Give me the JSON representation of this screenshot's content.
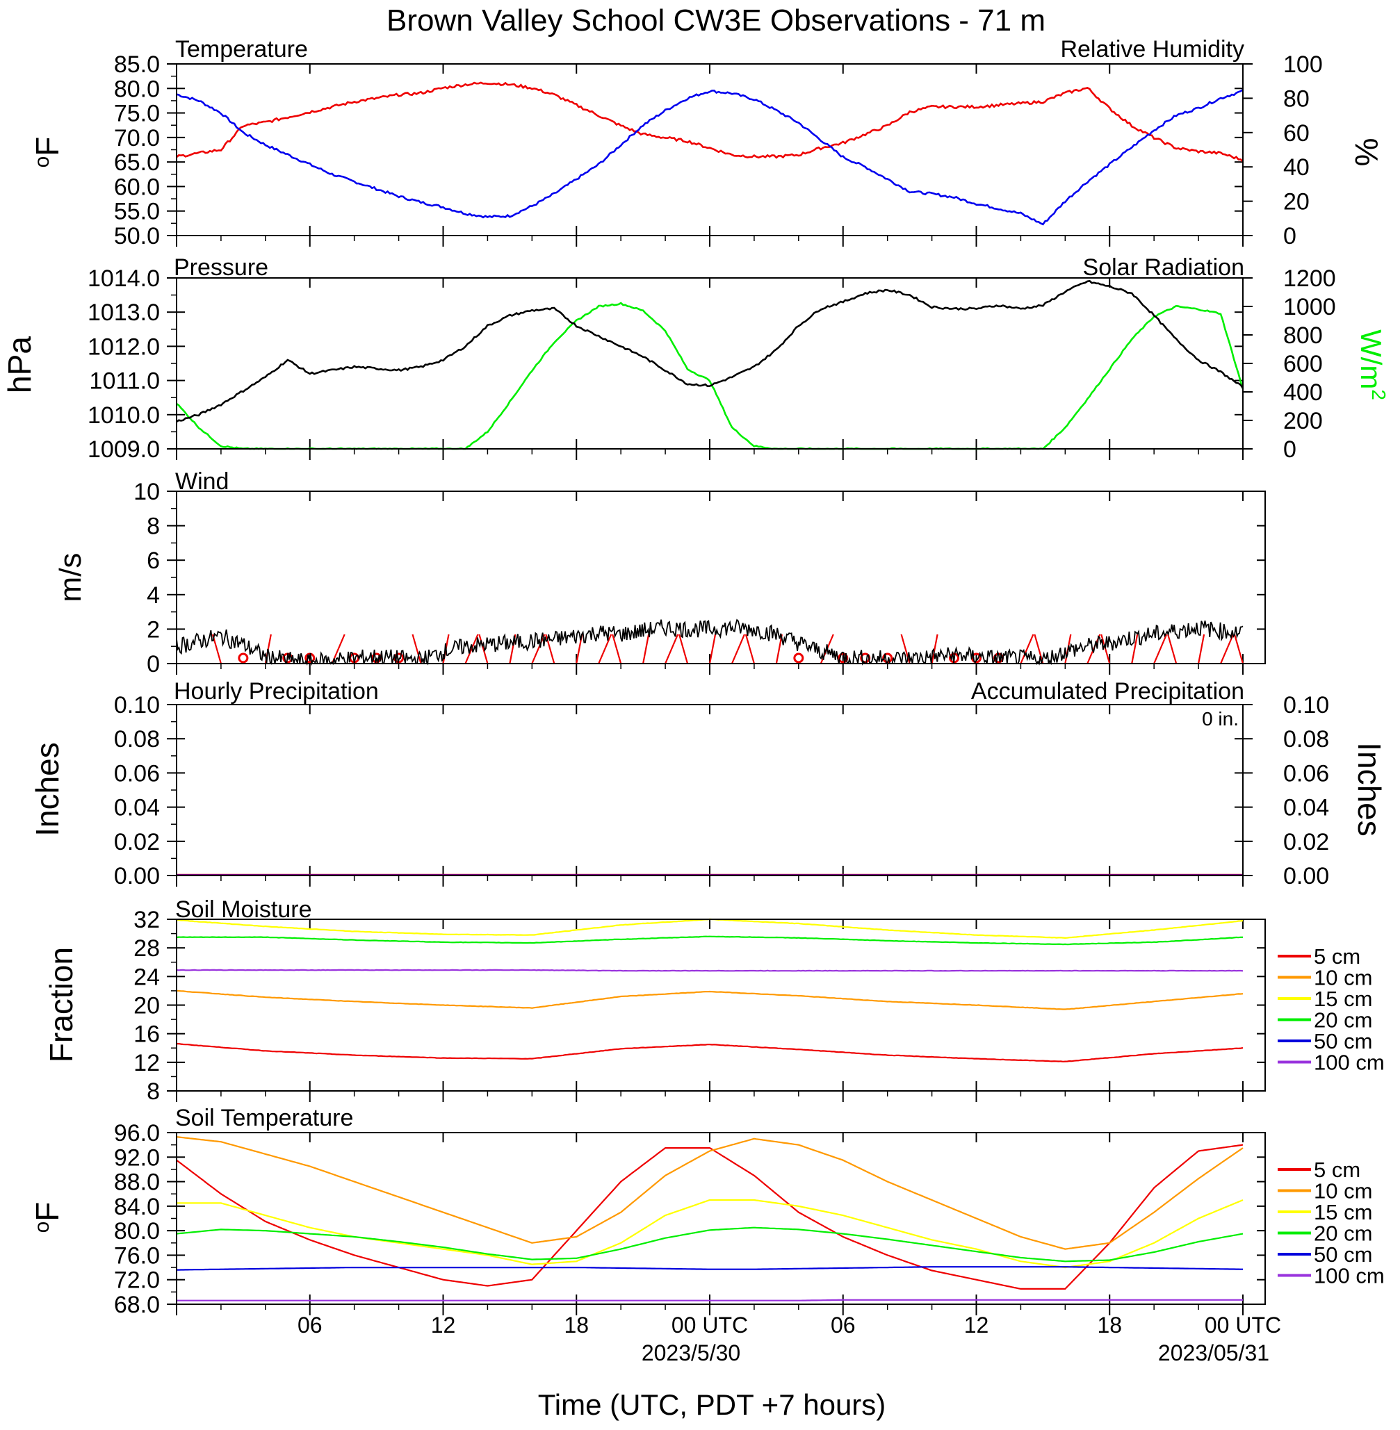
{
  "title": "Brown Valley School CW3E Observations - 71 m",
  "xlabel": "Time (UTC, PDT +7 hours)",
  "x_ticks": [
    "06",
    "12",
    "18",
    "00 UTC",
    "06",
    "12",
    "18",
    "00 UTC"
  ],
  "date_labels": [
    "2023/5/30",
    "2023/05/31"
  ],
  "colors": {
    "temperature": "#0000ee",
    "rh": "#ee0000",
    "pressure": "#000000",
    "solar": "#00ee00",
    "wind": "#000000",
    "barbs": "#ee0000",
    "d5": "#ee0000",
    "d10": "#ff9900",
    "d15": "#ffff00",
    "d20": "#00ee00",
    "d50": "#0000dd",
    "d100": "#9933dd"
  },
  "chart_data": [
    {
      "type": "line",
      "panel": "temperature_rh",
      "left_title": "Temperature",
      "right_title": "Relative Humidity",
      "ylabel_left": "oF",
      "ylabel_right": "%",
      "ylim_left": [
        50,
        85
      ],
      "ylim_right": [
        0,
        100
      ],
      "yticks_left": [
        "50.0",
        "55.0",
        "60.0",
        "65.0",
        "70.0",
        "75.0",
        "80.0",
        "85.0"
      ],
      "yticks_right": [
        "0",
        "20",
        "40",
        "60",
        "80",
        "100"
      ],
      "x_hours": [
        0,
        1,
        2,
        3,
        4,
        5,
        6,
        7,
        8,
        9,
        10,
        11,
        12,
        13,
        14,
        15,
        16,
        17,
        18,
        19,
        20,
        21,
        22,
        23,
        24,
        25,
        26,
        27,
        28,
        29,
        30,
        31,
        32,
        33,
        34,
        35,
        36,
        37,
        38,
        39,
        40,
        41,
        42,
        43,
        44,
        45,
        46,
        47,
        48
      ],
      "series": [
        {
          "name": "Temperature",
          "axis": "left",
          "values": [
            78.8,
            77.5,
            75,
            71,
            68.5,
            66.5,
            64.5,
            62.5,
            61,
            59.5,
            58,
            56.8,
            55.8,
            54.5,
            53.8,
            54,
            56,
            58.5,
            61.5,
            64.5,
            68.5,
            72.5,
            75.5,
            78,
            79.5,
            79,
            77.8,
            75.5,
            73,
            69.5,
            66,
            64,
            61.5,
            59,
            58.5,
            57.8,
            56.5,
            55.5,
            54.5,
            52.3,
            57,
            61,
            64.5,
            68,
            71.5,
            74.5,
            76,
            78,
            79.5
          ]
        },
        {
          "name": "Relative Humidity",
          "axis": "right",
          "values": [
            46,
            48,
            50,
            64,
            66,
            69,
            72,
            75,
            78,
            80,
            82,
            83,
            86,
            88,
            89,
            88,
            86,
            82,
            76,
            70,
            64,
            59,
            57,
            55,
            51,
            47,
            46,
            46,
            47,
            51,
            54,
            59,
            64,
            72,
            75,
            75,
            75,
            76,
            77,
            78,
            83,
            86,
            74,
            64,
            57,
            51,
            49,
            48,
            44
          ]
        }
      ]
    },
    {
      "type": "line",
      "panel": "pressure_solar",
      "left_title": "Pressure",
      "right_title": "Solar Radiation",
      "ylabel_left": "hPa",
      "ylabel_right": "W/m2",
      "ylim_left": [
        1009,
        1014
      ],
      "ylim_right": [
        0,
        1200
      ],
      "yticks_left": [
        "1009.0",
        "1010.0",
        "1011.0",
        "1012.0",
        "1013.0",
        "1014.0"
      ],
      "yticks_right": [
        "0",
        "200",
        "400",
        "600",
        "800",
        "1000",
        "1200"
      ],
      "x_hours": [
        0,
        1,
        2,
        3,
        4,
        5,
        6,
        7,
        8,
        9,
        10,
        11,
        12,
        13,
        14,
        15,
        16,
        17,
        18,
        19,
        20,
        21,
        22,
        23,
        24,
        25,
        26,
        27,
        28,
        29,
        30,
        31,
        32,
        33,
        34,
        35,
        36,
        37,
        38,
        39,
        40,
        41,
        42,
        43,
        44,
        45,
        46,
        47,
        48
      ],
      "series": [
        {
          "name": "Pressure",
          "axis": "left",
          "values": [
            1009.8,
            1010,
            1010.3,
            1010.7,
            1011.1,
            1011.6,
            1011.2,
            1011.3,
            1011.4,
            1011.35,
            1011.3,
            1011.4,
            1011.6,
            1012.0,
            1012.6,
            1012.9,
            1013.05,
            1013.1,
            1012.6,
            1012.3,
            1012.0,
            1011.7,
            1011.3,
            1010.9,
            1010.85,
            1011.1,
            1011.4,
            1011.9,
            1012.6,
            1013.1,
            1013.3,
            1013.55,
            1013.65,
            1013.5,
            1013.15,
            1013.1,
            1013.1,
            1013.2,
            1013.1,
            1013.2,
            1013.6,
            1013.9,
            1013.75,
            1013.55,
            1012.9,
            1012.2,
            1011.6,
            1011.25,
            1010.8
          ]
        },
        {
          "name": "Solar Radiation",
          "axis": "right",
          "values": [
            320,
            150,
            20,
            0,
            0,
            0,
            0,
            0,
            0,
            0,
            0,
            0,
            0,
            0,
            120,
            330,
            550,
            750,
            900,
            1000,
            1020,
            970,
            830,
            560,
            480,
            150,
            20,
            0,
            0,
            0,
            0,
            0,
            0,
            0,
            0,
            0,
            0,
            0,
            0,
            0,
            150,
            350,
            560,
            770,
            930,
            1000,
            980,
            950,
            420
          ]
        }
      ]
    },
    {
      "type": "line",
      "panel": "wind",
      "left_title": "Wind",
      "ylabel_left": "m/s",
      "ylim_left": [
        0,
        10
      ],
      "yticks_left": [
        "0",
        "2",
        "4",
        "6",
        "8",
        "10"
      ],
      "x_hours": [
        0,
        1,
        2,
        3,
        4,
        5,
        6,
        7,
        8,
        9,
        10,
        11,
        12,
        13,
        14,
        15,
        16,
        17,
        18,
        19,
        20,
        21,
        22,
        23,
        24,
        25,
        26,
        27,
        28,
        29,
        30,
        31,
        32,
        33,
        34,
        35,
        36,
        37,
        38,
        39,
        40,
        41,
        42,
        43,
        44,
        45,
        46,
        47,
        48
      ],
      "series": [
        {
          "name": "Wind speed",
          "values": [
            1.0,
            1.3,
            1.6,
            1.1,
            0.4,
            0.2,
            0.1,
            0.2,
            0.3,
            0.4,
            0.3,
            0.2,
            0.7,
            1.0,
            1.1,
            1.2,
            1.3,
            1.4,
            1.6,
            1.8,
            1.7,
            1.9,
            2.1,
            2.0,
            2.0,
            2.1,
            2.0,
            1.7,
            1.2,
            0.7,
            0.4,
            0.3,
            0.3,
            0.3,
            0.4,
            0.5,
            0.4,
            0.3,
            0.3,
            0.2,
            0.7,
            1.0,
            1.2,
            1.5,
            1.7,
            1.9,
            2.1,
            1.9,
            1.8
          ]
        }
      ],
      "calm_hours": [
        3,
        5,
        6,
        8,
        9,
        10,
        28,
        30,
        31,
        32,
        35,
        36,
        37
      ],
      "barb_hours": [
        2,
        4,
        7,
        11,
        12,
        13,
        14,
        15,
        16,
        17,
        18,
        19,
        20,
        21,
        22,
        23,
        24,
        25,
        26,
        27,
        29,
        33,
        34,
        38,
        39,
        40,
        41,
        42,
        43,
        44,
        45,
        46,
        47,
        48
      ]
    },
    {
      "type": "line",
      "panel": "precipitation",
      "left_title": "Hourly Precipitation",
      "right_title": "Accumulated Precipitation",
      "annotation": "0 in.",
      "ylabel_left": "Inches",
      "ylabel_right": "Inches",
      "ylim_left": [
        0,
        0.1
      ],
      "ylim_right": [
        0,
        0.1
      ],
      "yticks_left": [
        "0.00",
        "0.02",
        "0.04",
        "0.06",
        "0.08",
        "0.10"
      ],
      "yticks_right": [
        "0.00",
        "0.02",
        "0.04",
        "0.06",
        "0.08",
        "0.10"
      ],
      "x_hours": [
        0,
        48
      ],
      "series": [
        {
          "name": "Hourly Precipitation",
          "values": [
            0,
            0
          ]
        },
        {
          "name": "Accumulated Precipitation",
          "values": [
            0,
            0
          ]
        }
      ]
    },
    {
      "type": "line",
      "panel": "soil_moisture",
      "left_title": "Soil Moisture",
      "ylabel_left": "Fraction",
      "ylim_left": [
        8,
        32
      ],
      "yticks_left": [
        "8",
        "12",
        "16",
        "20",
        "24",
        "28",
        "32"
      ],
      "legend": [
        "5 cm",
        "10 cm",
        "15 cm",
        "20 cm",
        "50 cm",
        "100 cm"
      ],
      "x_hours": [
        0,
        4,
        8,
        12,
        16,
        20,
        24,
        28,
        32,
        36,
        40,
        44,
        48
      ],
      "series": [
        {
          "name": "5 cm",
          "values": [
            14.6,
            13.6,
            13.0,
            12.6,
            12.5,
            13.9,
            14.5,
            13.8,
            13.0,
            12.5,
            12.1,
            13.2,
            14.0
          ]
        },
        {
          "name": "10 cm",
          "values": [
            22.0,
            21.1,
            20.5,
            20.0,
            19.6,
            21.2,
            21.9,
            21.3,
            20.5,
            20.0,
            19.4,
            20.5,
            21.6
          ]
        },
        {
          "name": "15 cm",
          "values": [
            31.9,
            31.0,
            30.3,
            29.9,
            29.8,
            31.2,
            32.0,
            31.4,
            30.5,
            29.8,
            29.4,
            30.5,
            31.8
          ]
        },
        {
          "name": "20 cm",
          "values": [
            29.5,
            29.5,
            29.1,
            28.8,
            28.7,
            29.2,
            29.6,
            29.4,
            29.0,
            28.7,
            28.5,
            28.8,
            29.5
          ]
        },
        {
          "name": "100 cm",
          "values": [
            24.9,
            24.9,
            24.9,
            24.9,
            24.9,
            24.8,
            24.8,
            24.8,
            24.8,
            24.8,
            24.8,
            24.8,
            24.8
          ]
        }
      ]
    },
    {
      "type": "line",
      "panel": "soil_temperature",
      "left_title": "Soil Temperature",
      "ylabel_left": "oF",
      "ylim_left": [
        68,
        96
      ],
      "yticks_left": [
        "68.0",
        "72.0",
        "76.0",
        "80.0",
        "84.0",
        "88.0",
        "92.0",
        "96.0"
      ],
      "legend": [
        "5 cm",
        "10 cm",
        "15 cm",
        "20 cm",
        "50 cm",
        "100 cm"
      ],
      "x_hours": [
        0,
        2,
        4,
        6,
        8,
        10,
        12,
        14,
        16,
        18,
        20,
        22,
        24,
        26,
        28,
        30,
        32,
        34,
        36,
        38,
        40,
        42,
        44,
        46,
        48
      ],
      "series": [
        {
          "name": "5 cm",
          "values": [
            91.5,
            86,
            81.5,
            78.5,
            76,
            74,
            72,
            71,
            72,
            80,
            88,
            93.5,
            93.5,
            89,
            83,
            79,
            76,
            73.5,
            72,
            70.5,
            70.5,
            78,
            87,
            93,
            94
          ]
        },
        {
          "name": "10 cm",
          "values": [
            95.3,
            94.5,
            92.5,
            90.5,
            88,
            85.5,
            83,
            80.5,
            78,
            79,
            83,
            89,
            93,
            95,
            94,
            91.5,
            88,
            85,
            82,
            79,
            77,
            78,
            83,
            88.5,
            93.5
          ]
        },
        {
          "name": "15 cm",
          "values": [
            84.5,
            84.5,
            82.5,
            80.5,
            79,
            78,
            77,
            76,
            74.5,
            75,
            78,
            82.5,
            85,
            85,
            84,
            82.5,
            80.5,
            78.5,
            77,
            75,
            74,
            75,
            78,
            82,
            85
          ]
        },
        {
          "name": "20 cm",
          "values": [
            79.5,
            80.2,
            80,
            79.5,
            79,
            78.2,
            77.3,
            76.2,
            75.3,
            75.5,
            77,
            78.8,
            80.1,
            80.5,
            80.2,
            79.5,
            78.6,
            77.6,
            76.6,
            75.6,
            75,
            75.2,
            76.5,
            78.2,
            79.5
          ]
        },
        {
          "name": "50 cm",
          "values": [
            73.6,
            73.7,
            73.8,
            73.9,
            74,
            74,
            74,
            74,
            74,
            74,
            73.9,
            73.8,
            73.7,
            73.7,
            73.8,
            73.9,
            74,
            74.1,
            74.1,
            74.1,
            74.1,
            74,
            73.9,
            73.8,
            73.7
          ]
        },
        {
          "name": "100 cm",
          "values": [
            68.6,
            68.6,
            68.6,
            68.6,
            68.6,
            68.6,
            68.6,
            68.6,
            68.6,
            68.6,
            68.6,
            68.6,
            68.6,
            68.6,
            68.6,
            68.7,
            68.7,
            68.7,
            68.7,
            68.7,
            68.7,
            68.7,
            68.7,
            68.7,
            68.7
          ]
        }
      ]
    }
  ]
}
